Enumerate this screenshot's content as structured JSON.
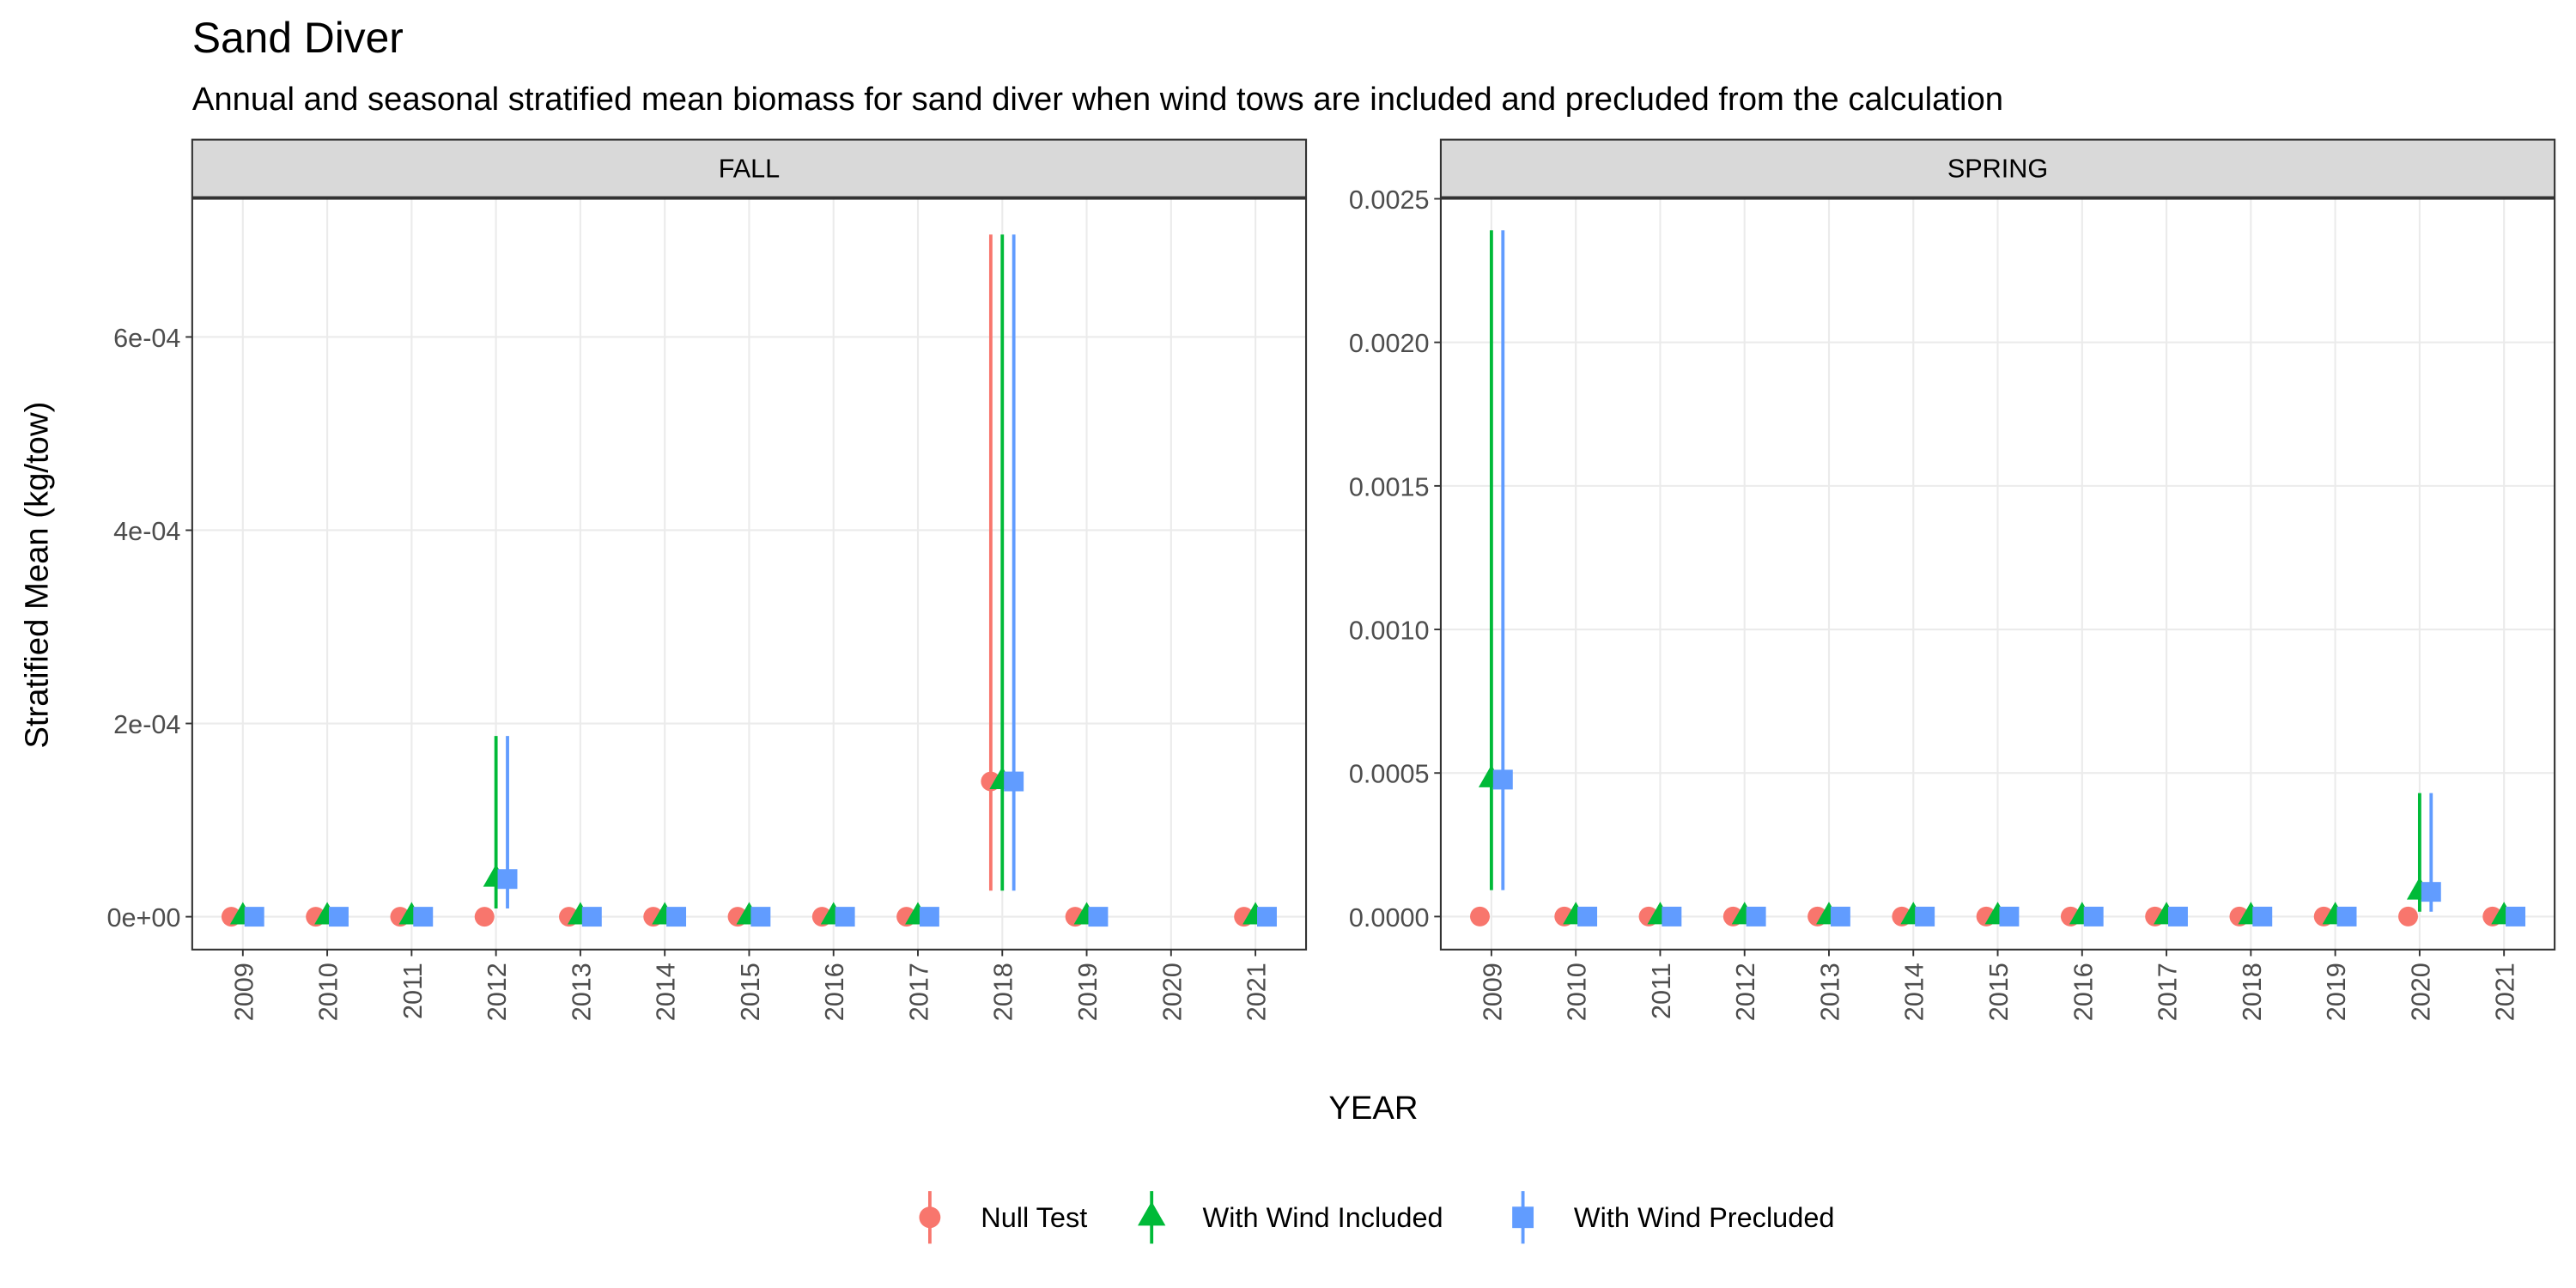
{
  "title": "Sand Diver",
  "subtitle": "Annual and seasonal stratified mean biomass for sand diver when wind tows are included and precluded from the calculation",
  "x_label": "YEAR",
  "y_label": "Stratified Mean (kg/tow)",
  "legend": {
    "position": "bottom",
    "entries": [
      {
        "name": "Null Test",
        "color": "#F8766D",
        "marker": "circle"
      },
      {
        "name": "With Wind Included",
        "color": "#00BA38",
        "marker": "triangle"
      },
      {
        "name": "With Wind Precluded",
        "color": "#619CFF",
        "marker": "square"
      }
    ]
  },
  "chart_data": [
    {
      "type": "pointrange",
      "panel": "FALL",
      "grid": true,
      "categories": [
        "2009",
        "2010",
        "2011",
        "2012",
        "2013",
        "2014",
        "2015",
        "2016",
        "2017",
        "2018",
        "2019",
        "2020",
        "2021"
      ],
      "ylim": [
        -3.4e-05,
        0.000743
      ],
      "yticks": [
        {
          "value": 0,
          "label": "0e+00"
        },
        {
          "value": 0.0002,
          "label": "2e-04"
        },
        {
          "value": 0.0004,
          "label": "4e-04"
        },
        {
          "value": 0.0006,
          "label": "6e-04"
        }
      ],
      "series": [
        {
          "values": [
            0,
            0,
            0,
            0,
            0,
            0,
            0,
            0,
            0,
            0.00014,
            0,
            null,
            0
          ],
          "lower": [
            null,
            null,
            null,
            null,
            null,
            null,
            null,
            null,
            null,
            2.7e-05,
            null,
            null,
            null
          ],
          "upper": [
            null,
            null,
            null,
            null,
            null,
            null,
            null,
            null,
            null,
            0.000706,
            null,
            null,
            null
          ]
        },
        {
          "values": [
            0,
            0,
            0,
            3.9e-05,
            0,
            0,
            0,
            0,
            0,
            0.00014,
            0,
            null,
            0
          ],
          "lower": [
            null,
            null,
            null,
            8.5e-06,
            null,
            null,
            null,
            null,
            null,
            2.7e-05,
            null,
            null,
            null
          ],
          "upper": [
            null,
            null,
            null,
            0.000187,
            null,
            null,
            null,
            null,
            null,
            0.000706,
            null,
            null,
            null
          ]
        },
        {
          "values": [
            0,
            0,
            0,
            3.9e-05,
            0,
            0,
            0,
            0,
            0,
            0.00014,
            0,
            null,
            0
          ],
          "lower": [
            null,
            null,
            null,
            8.5e-06,
            null,
            null,
            null,
            null,
            null,
            2.7e-05,
            null,
            null,
            null
          ],
          "upper": [
            null,
            null,
            null,
            0.000187,
            null,
            null,
            null,
            null,
            null,
            0.000706,
            null,
            null,
            null
          ]
        }
      ]
    },
    {
      "type": "pointrange",
      "panel": "SPRING",
      "grid": true,
      "categories": [
        "2009",
        "2010",
        "2011",
        "2012",
        "2013",
        "2014",
        "2015",
        "2016",
        "2017",
        "2018",
        "2019",
        "2020",
        "2021"
      ],
      "ylim": [
        -0.000115,
        0.0025
      ],
      "yticks": [
        {
          "value": 0,
          "label": "0.0000"
        },
        {
          "value": 0.0005,
          "label": "0.0005"
        },
        {
          "value": 0.001,
          "label": "0.0010"
        },
        {
          "value": 0.0015,
          "label": "0.0015"
        },
        {
          "value": 0.002,
          "label": "0.0020"
        },
        {
          "value": 0.0025,
          "label": "0.0025"
        }
      ],
      "series": [
        {
          "values": [
            0,
            0,
            0,
            0,
            0,
            0,
            0,
            0,
            0,
            0,
            0,
            0,
            0
          ],
          "lower": [
            null,
            null,
            null,
            null,
            null,
            null,
            null,
            null,
            null,
            null,
            null,
            null,
            null
          ],
          "upper": [
            null,
            null,
            null,
            null,
            null,
            null,
            null,
            null,
            null,
            null,
            null,
            null,
            null
          ]
        },
        {
          "values": [
            0.000477,
            0,
            0,
            0,
            0,
            0,
            0,
            0,
            0,
            0,
            0,
            8.6e-05,
            0
          ],
          "lower": [
            9.2e-05,
            null,
            null,
            null,
            null,
            null,
            null,
            null,
            null,
            null,
            null,
            1.7e-05,
            null
          ],
          "upper": [
            0.00239,
            null,
            null,
            null,
            null,
            null,
            null,
            null,
            null,
            null,
            null,
            0.00043,
            null
          ]
        },
        {
          "values": [
            0.000477,
            0,
            0,
            0,
            0,
            0,
            0,
            0,
            0,
            0,
            0,
            8.6e-05,
            0
          ],
          "lower": [
            9.2e-05,
            null,
            null,
            null,
            null,
            null,
            null,
            null,
            null,
            null,
            null,
            1.7e-05,
            null
          ],
          "upper": [
            0.00239,
            null,
            null,
            null,
            null,
            null,
            null,
            null,
            null,
            null,
            null,
            0.00043,
            null
          ]
        }
      ]
    }
  ]
}
